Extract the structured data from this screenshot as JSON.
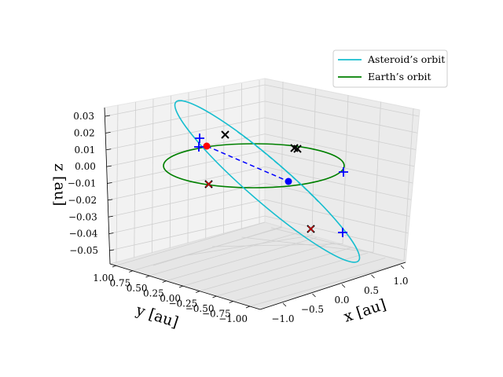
{
  "chart_data": {
    "type": "line",
    "projection": "3d",
    "title": "",
    "legend": {
      "placement": "top-right",
      "entries": [
        {
          "label": "Asteroid’s orbit",
          "color": "#17becf"
        },
        {
          "label": "Earth’s orbit",
          "color": "#008000"
        }
      ]
    },
    "axes": {
      "x": {
        "label": "x [au]",
        "ticks": [
          "−1.0",
          "−0.5",
          "0.0",
          "0.5",
          "1.0"
        ],
        "range": [
          -1.1,
          1.1
        ]
      },
      "y": {
        "label": "y [au]",
        "ticks": [
          "1.00",
          "0.75",
          "0.50",
          "0.25",
          "0.00",
          "−0.25",
          "−0.50",
          "−0.75",
          "−1.00"
        ],
        "range": [
          -1.1,
          1.1
        ]
      },
      "z": {
        "label": "z [au]",
        "ticks": [
          "0.03",
          "0.02",
          "0.01",
          "0.00",
          "−0.01",
          "−0.02",
          "−0.03",
          "−0.04",
          "−0.05"
        ],
        "range": [
          -0.06,
          0.035
        ]
      }
    },
    "grid": true,
    "series": [
      {
        "name": "Asteroid’s orbit",
        "color": "#17becf",
        "kind": "ellipse",
        "semi_major_axis_au": 1.05,
        "inclination_note": "tilted orbit",
        "hidden_part_dashed": true
      },
      {
        "name": "Earth’s orbit",
        "color": "#008000",
        "kind": "circle",
        "radius_au": 1.0
      }
    ],
    "markers": {
      "sun": {
        "color": "#0000ff",
        "x": 0.0,
        "y": 0.0,
        "z": 0.0
      },
      "asteroid": {
        "color": "#ff0000",
        "x": -0.62,
        "y": 0.55,
        "z": 0.008
      },
      "plus_markers": [
        {
          "x": -0.72,
          "y": 0.62,
          "z": 0.014
        },
        {
          "x": -0.62,
          "y": 0.58,
          "z": 0.006
        },
        {
          "x": 0.95,
          "y": -0.1,
          "z": 0.0
        },
        {
          "x": 0.72,
          "y": -0.62,
          "z": -0.045
        }
      ],
      "x_markers_black": [
        {
          "x": -0.4,
          "y": 0.8,
          "z": 0.017
        },
        {
          "x": 0.35,
          "y": 0.72,
          "z": 0.0
        },
        {
          "x": -0.7,
          "y": -0.35,
          "z": -0.01
        }
      ],
      "x_markers_red": [
        {
          "x": -0.7,
          "y": -0.35,
          "z": -0.01
        },
        {
          "x": 0.45,
          "y": -0.72,
          "z": -0.04
        }
      ]
    },
    "connector": {
      "style": "dashed",
      "color": "#0000ff",
      "from": "asteroid",
      "to": "sun"
    }
  }
}
